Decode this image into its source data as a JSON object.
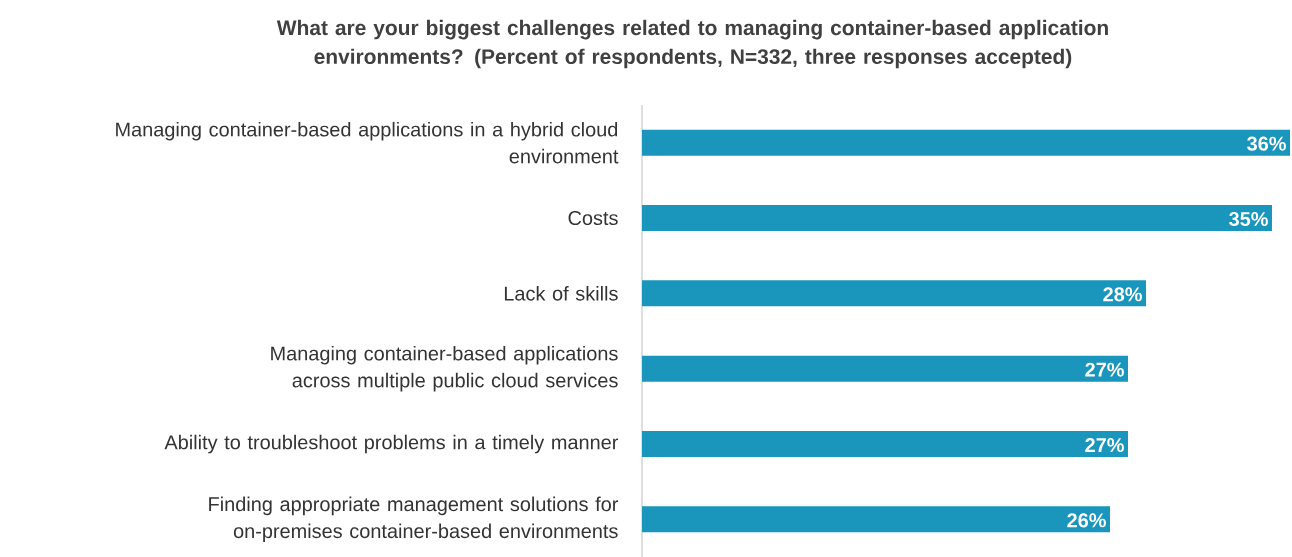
{
  "chart_data": {
    "type": "bar",
    "orientation": "horizontal",
    "title": "What are your biggest challenges related to managing container-based application environments? (Percent of respondents, N=332, three responses accepted)",
    "categories": [
      "Managing container-based applications in a hybrid cloud environment",
      "Costs",
      "Lack of skills",
      "Managing container-based applications across multiple public cloud services",
      "Ability to troubleshoot problems in a timely manner",
      "Finding appropriate management solutions for on-premises container-based environments"
    ],
    "values": [
      36,
      35,
      28,
      27,
      27,
      26
    ],
    "value_labels": [
      "36%",
      "35%",
      "28%",
      "27%",
      "27%",
      "26%"
    ],
    "color": "#1a96bc",
    "xlim": [
      0,
      36
    ],
    "grid": false
  }
}
